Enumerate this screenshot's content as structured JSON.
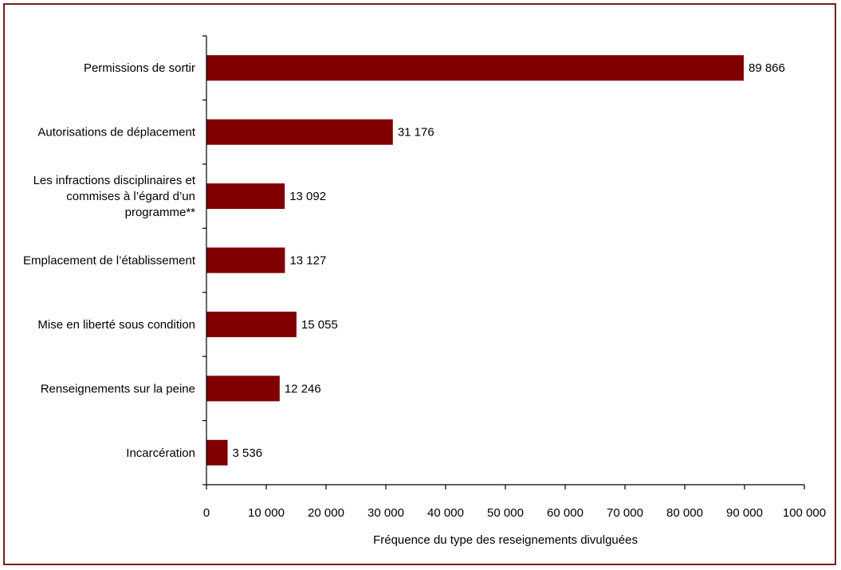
{
  "chart_data": {
    "type": "bar",
    "orientation": "horizontal",
    "categories": [
      [
        "Permissions de sortir"
      ],
      [
        "Autorisations de déplacement"
      ],
      [
        "Les infractions disciplinaires et",
        "commises à l’égard d’un",
        "programme**"
      ],
      [
        "Emplacement de l’établissement"
      ],
      [
        "Mise en liberté sous condition"
      ],
      [
        "Renseignements sur la peine"
      ],
      [
        "Incarcération"
      ]
    ],
    "values": [
      89866,
      31176,
      13092,
      13127,
      15055,
      12246,
      3536
    ],
    "value_labels": [
      "89 866",
      "31 176",
      "13 092",
      "13 127",
      "15 055",
      "12 246",
      "3 536"
    ],
    "xlabel": "Fréquence du type des reseignements divulguées",
    "xlim": [
      0,
      100000
    ],
    "x_ticks": [
      0,
      10000,
      20000,
      30000,
      40000,
      50000,
      60000,
      70000,
      80000,
      90000,
      100000
    ],
    "x_tick_labels": [
      "0",
      "10 000",
      "20 000",
      "30 000",
      "40 000",
      "50 000",
      "60 000",
      "70 000",
      "80 000",
      "90 000",
      "100 000"
    ],
    "bar_color": "#800000",
    "frame_color": "#7a1f1f",
    "grid": false
  }
}
